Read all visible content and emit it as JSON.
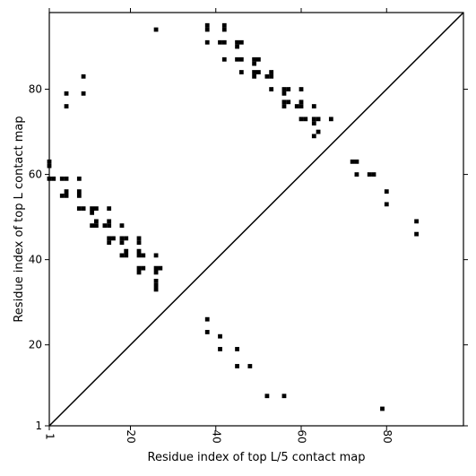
{
  "chart_data": {
    "type": "scatter",
    "title": "",
    "xlabel": "Residue index of top L/5 contact map",
    "ylabel": "Residue index of top L contact map",
    "xlim": [
      1,
      98
    ],
    "ylim": [
      1,
      98
    ],
    "x_ticks": [
      1,
      20,
      40,
      60,
      80
    ],
    "y_ticks": [
      1,
      20,
      40,
      60,
      80
    ],
    "x_tick_labels": [
      "1",
      "20",
      "40",
      "60",
      "80"
    ],
    "y_tick_labels": [
      "1",
      "20",
      "40",
      "60",
      "80"
    ],
    "x_tick_labels_rotated": true,
    "grid": false,
    "marker": "square",
    "marker_color": "#000000",
    "diagonal_line": true,
    "upper_points": [
      [
        1,
        63
      ],
      [
        1,
        62
      ],
      [
        1,
        59
      ],
      [
        2,
        59
      ],
      [
        4,
        59
      ],
      [
        5,
        59
      ],
      [
        4,
        55
      ],
      [
        5,
        55
      ],
      [
        5,
        56
      ],
      [
        5,
        79
      ],
      [
        5,
        76
      ],
      [
        8,
        59
      ],
      [
        8,
        56
      ],
      [
        8,
        55
      ],
      [
        8,
        52
      ],
      [
        9,
        52
      ],
      [
        9,
        83
      ],
      [
        9,
        79
      ],
      [
        11,
        52
      ],
      [
        12,
        52
      ],
      [
        11,
        51
      ],
      [
        11,
        48
      ],
      [
        12,
        48
      ],
      [
        12,
        49
      ],
      [
        14,
        48
      ],
      [
        15,
        48
      ],
      [
        15,
        49
      ],
      [
        15,
        52
      ],
      [
        15,
        45
      ],
      [
        16,
        45
      ],
      [
        15,
        44
      ],
      [
        18,
        45
      ],
      [
        19,
        45
      ],
      [
        18,
        44
      ],
      [
        18,
        48
      ],
      [
        18,
        41
      ],
      [
        19,
        41
      ],
      [
        19,
        42
      ],
      [
        22,
        45
      ],
      [
        22,
        44
      ],
      [
        22,
        42
      ],
      [
        22,
        41
      ],
      [
        23,
        41
      ],
      [
        22,
        38
      ],
      [
        23,
        38
      ],
      [
        22,
        37
      ],
      [
        26,
        41
      ],
      [
        26,
        38
      ],
      [
        27,
        38
      ],
      [
        26,
        37
      ],
      [
        26,
        35
      ],
      [
        26,
        34
      ],
      [
        26,
        33
      ],
      [
        26,
        94
      ],
      [
        38,
        95
      ],
      [
        38,
        94
      ],
      [
        38,
        91
      ],
      [
        41,
        91
      ],
      [
        42,
        91
      ],
      [
        42,
        95
      ],
      [
        42,
        94
      ],
      [
        42,
        87
      ],
      [
        45,
        91
      ],
      [
        45,
        90
      ],
      [
        46,
        91
      ],
      [
        45,
        87
      ],
      [
        46,
        87
      ],
      [
        46,
        84
      ],
      [
        49,
        87
      ],
      [
        49,
        86
      ],
      [
        50,
        87
      ],
      [
        49,
        84
      ],
      [
        50,
        84
      ],
      [
        49,
        83
      ],
      [
        52,
        83
      ],
      [
        53,
        83
      ],
      [
        53,
        84
      ],
      [
        53,
        80
      ],
      [
        56,
        80
      ],
      [
        57,
        80
      ],
      [
        56,
        79
      ],
      [
        56,
        77
      ],
      [
        57,
        77
      ],
      [
        56,
        76
      ],
      [
        59,
        76
      ],
      [
        60,
        76
      ],
      [
        60,
        77
      ],
      [
        60,
        80
      ],
      [
        60,
        73
      ],
      [
        61,
        73
      ],
      [
        63,
        76
      ],
      [
        63,
        73
      ],
      [
        64,
        73
      ],
      [
        63,
        72
      ],
      [
        64,
        70
      ],
      [
        63,
        69
      ],
      [
        67,
        73
      ]
    ],
    "lower_points": [
      [
        38,
        26
      ],
      [
        38,
        23
      ],
      [
        41,
        22
      ],
      [
        41,
        19
      ],
      [
        45,
        19
      ],
      [
        45,
        15
      ],
      [
        48,
        15
      ],
      [
        52,
        8
      ],
      [
        56,
        8
      ],
      [
        72,
        63
      ],
      [
        73,
        63
      ],
      [
        73,
        60
      ],
      [
        76,
        60
      ],
      [
        77,
        60
      ],
      [
        80,
        56
      ],
      [
        80,
        53
      ],
      [
        79,
        5
      ],
      [
        87,
        49
      ],
      [
        87,
        46
      ]
    ]
  }
}
